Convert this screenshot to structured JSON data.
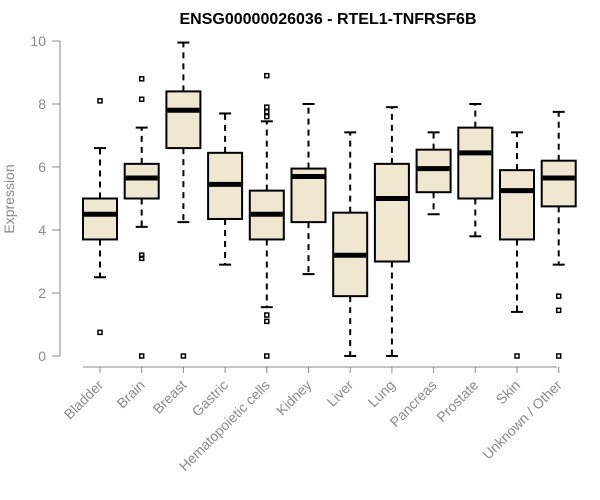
{
  "chart_data": {
    "type": "box",
    "title": "ENSG00000026036 - RTEL1-TNFRSF6B",
    "xlabel": "",
    "ylabel": "Expression",
    "ylim": [
      0,
      10
    ],
    "yticks": [
      "0",
      "2",
      "4",
      "6",
      "8",
      "10"
    ],
    "box_fill": "#efe7cf",
    "groups": [
      {
        "name": "Bladder",
        "min": 2.5,
        "q1": 3.7,
        "median": 4.5,
        "q3": 5.0,
        "max": 6.6,
        "outliers": [
          8.1,
          0.75
        ]
      },
      {
        "name": "Brain",
        "min": 4.1,
        "q1": 5.0,
        "median": 5.65,
        "q3": 6.1,
        "max": 7.25,
        "outliers": [
          8.8,
          8.15,
          3.2,
          3.1,
          0.0
        ]
      },
      {
        "name": "Breast",
        "min": 4.25,
        "q1": 6.6,
        "median": 7.8,
        "q3": 8.4,
        "max": 9.95,
        "outliers": [
          0.0
        ]
      },
      {
        "name": "Gastric",
        "min": 2.9,
        "q1": 4.35,
        "median": 5.45,
        "q3": 6.45,
        "max": 7.7,
        "outliers": []
      },
      {
        "name": "Hematopoietic cells",
        "min": 1.55,
        "q1": 3.7,
        "median": 4.5,
        "q3": 5.25,
        "max": 7.45,
        "outliers": [
          8.9,
          7.9,
          7.75,
          7.6,
          1.3,
          1.1,
          0.0
        ]
      },
      {
        "name": "Kidney",
        "min": 2.6,
        "q1": 4.25,
        "median": 5.7,
        "q3": 5.95,
        "max": 8.0,
        "outliers": []
      },
      {
        "name": "Liver",
        "min": 0.0,
        "q1": 1.9,
        "median": 3.2,
        "q3": 4.55,
        "max": 7.1,
        "outliers": []
      },
      {
        "name": "Lung",
        "min": 0.0,
        "q1": 3.0,
        "median": 5.0,
        "q3": 6.1,
        "max": 7.9,
        "outliers": []
      },
      {
        "name": "Pancreas",
        "min": 4.5,
        "q1": 5.2,
        "median": 5.95,
        "q3": 6.55,
        "max": 7.1,
        "outliers": []
      },
      {
        "name": "Prostate",
        "min": 3.8,
        "q1": 5.0,
        "median": 6.45,
        "q3": 7.25,
        "max": 8.0,
        "outliers": []
      },
      {
        "name": "Skin",
        "min": 1.4,
        "q1": 3.7,
        "median": 5.25,
        "q3": 5.9,
        "max": 7.1,
        "outliers": [
          0.0
        ]
      },
      {
        "name": "Unknown / Other",
        "min": 2.9,
        "q1": 4.75,
        "median": 5.65,
        "q3": 6.2,
        "max": 7.75,
        "outliers": [
          1.9,
          1.45,
          0.0
        ]
      }
    ]
  }
}
